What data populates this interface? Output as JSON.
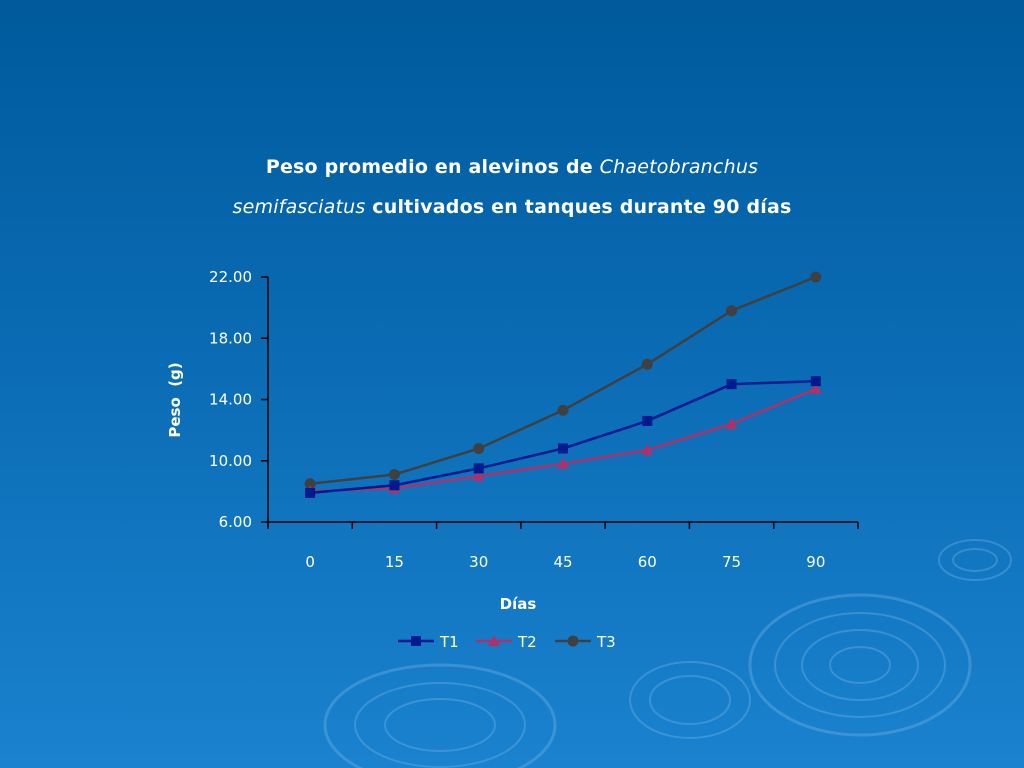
{
  "title": {
    "line1_prefix": "Peso promedio en alevinos de ",
    "line1_italic": "Chaetobranchus",
    "line2_italic": "semifasciatus",
    "line2_suffix": " cultivados en tanques durante 90 días"
  },
  "colors": {
    "background_top": "#005a9c",
    "background_bottom": "#1a82cf",
    "axis": "#000000",
    "T1": "#001a8f",
    "T2": "#b0306a",
    "T3": "#404040"
  },
  "chart_data": {
    "type": "line",
    "title": "Peso promedio en alevinos de Chaetobranchus semifasciatus cultivados en tanques durante 90 días",
    "xlabel": "Días",
    "ylabel": "Peso  (g)",
    "categories": [
      "0",
      "15",
      "30",
      "45",
      "60",
      "75",
      "90"
    ],
    "y_ticks": [
      "6.00",
      "10.00",
      "14.00",
      "18.00",
      "22.00"
    ],
    "ylim": [
      6,
      22
    ],
    "grid": false,
    "legend_position": "bottom",
    "series": [
      {
        "name": "T1",
        "marker": "square",
        "values": [
          7.9,
          8.4,
          9.5,
          10.8,
          12.6,
          15.0,
          15.2
        ]
      },
      {
        "name": "T2",
        "marker": "triangle",
        "values": [
          8.0,
          8.2,
          9.0,
          9.8,
          10.7,
          12.4,
          14.7
        ]
      },
      {
        "name": "T3",
        "marker": "circle",
        "values": [
          8.5,
          9.1,
          10.8,
          13.3,
          16.3,
          19.8,
          22.0
        ]
      }
    ]
  }
}
